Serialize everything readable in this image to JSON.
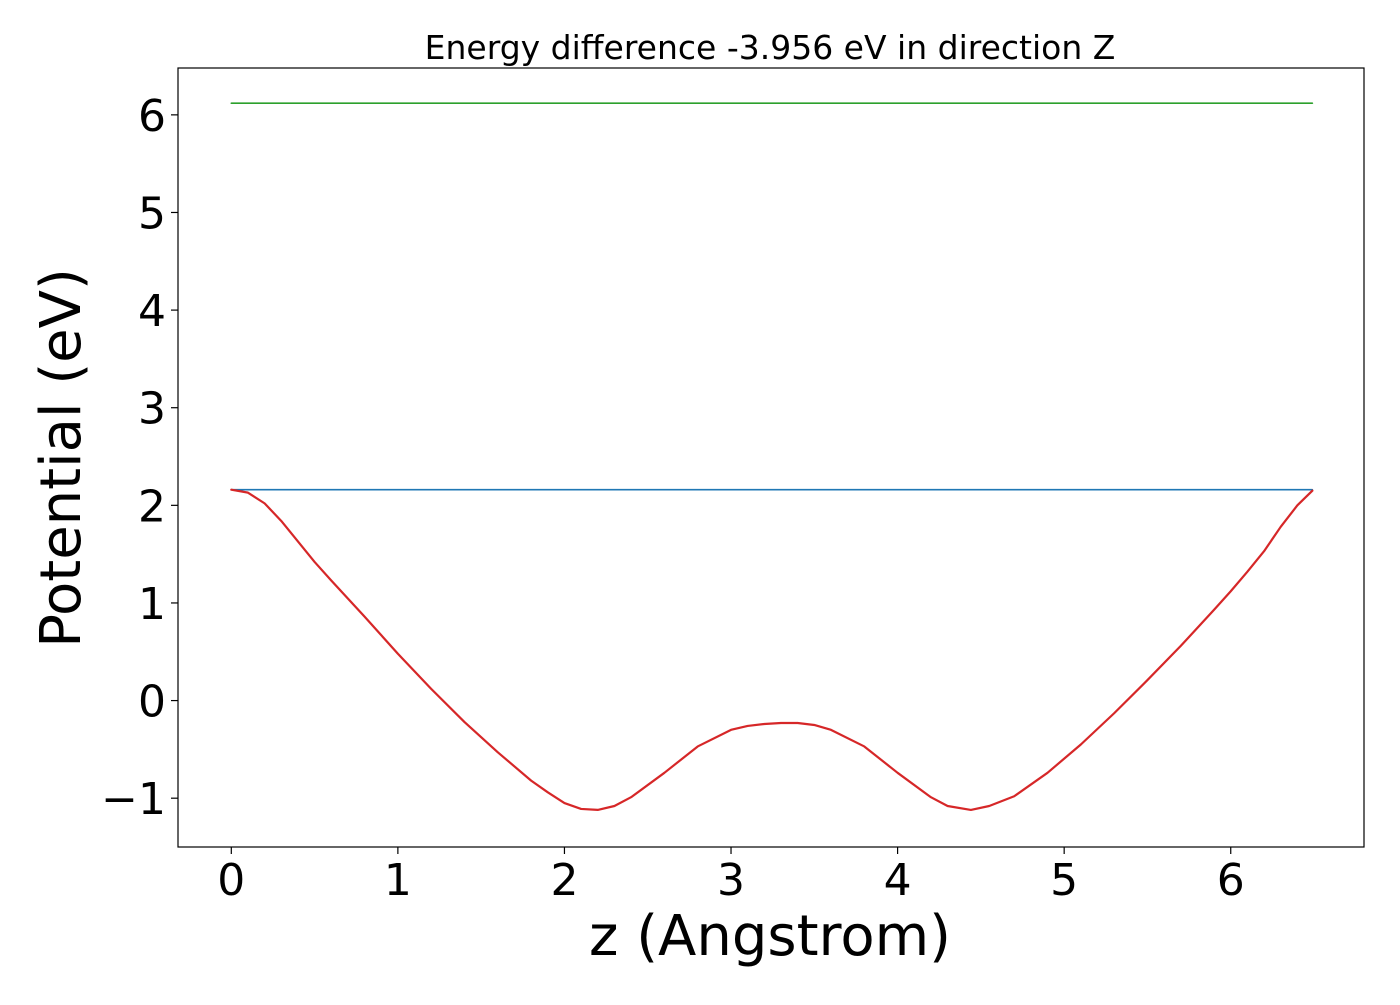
{
  "chart_data": {
    "type": "line",
    "title": "Energy difference -3.956 eV in direction Z",
    "xlabel": "z (Angstrom)",
    "ylabel": "Potential (eV)",
    "xlim": [
      -0.32,
      6.8
    ],
    "ylim": [
      -1.5,
      6.48
    ],
    "x_ticks": [
      0,
      1,
      2,
      3,
      4,
      5,
      6
    ],
    "y_ticks": [
      -1,
      0,
      1,
      2,
      3,
      4,
      5,
      6
    ],
    "x_tick_labels": [
      "0",
      "1",
      "2",
      "3",
      "4",
      "5",
      "6"
    ],
    "y_tick_labels": [
      "−1",
      "0",
      "1",
      "2",
      "3",
      "4",
      "5",
      "6"
    ],
    "grid": false,
    "legend": "none",
    "series": [
      {
        "color": "#2ca02c",
        "x": [
          0,
          6.49
        ],
        "y": [
          6.12,
          6.12
        ]
      },
      {
        "color": "#1f77b4",
        "x": [
          0,
          6.49
        ],
        "y": [
          2.16,
          2.16
        ]
      },
      {
        "color": "#d62728",
        "x": [
          0,
          0.1,
          0.2,
          0.3,
          0.4,
          0.5,
          0.6,
          0.8,
          1.0,
          1.2,
          1.4,
          1.6,
          1.8,
          1.9,
          2.0,
          2.1,
          2.2,
          2.3,
          2.4,
          2.6,
          2.8,
          3.0,
          3.1,
          3.2,
          3.3,
          3.4,
          3.5,
          3.6,
          3.8,
          4.0,
          4.2,
          4.3,
          4.44,
          4.55,
          4.7,
          4.9,
          5.1,
          5.3,
          5.5,
          5.7,
          5.9,
          6.0,
          6.1,
          6.2,
          6.3,
          6.4,
          6.49
        ],
        "y": [
          2.16,
          2.13,
          2.02,
          1.84,
          1.63,
          1.42,
          1.23,
          0.86,
          0.48,
          0.12,
          -0.22,
          -0.53,
          -0.82,
          -0.94,
          -1.05,
          -1.11,
          -1.12,
          -1.08,
          -0.99,
          -0.74,
          -0.47,
          -0.3,
          -0.26,
          -0.24,
          -0.23,
          -0.23,
          -0.25,
          -0.3,
          -0.47,
          -0.74,
          -0.99,
          -1.08,
          -1.12,
          -1.08,
          -0.98,
          -0.74,
          -0.45,
          -0.13,
          0.21,
          0.56,
          0.93,
          1.12,
          1.32,
          1.53,
          1.78,
          2.0,
          2.15
        ]
      }
    ]
  }
}
